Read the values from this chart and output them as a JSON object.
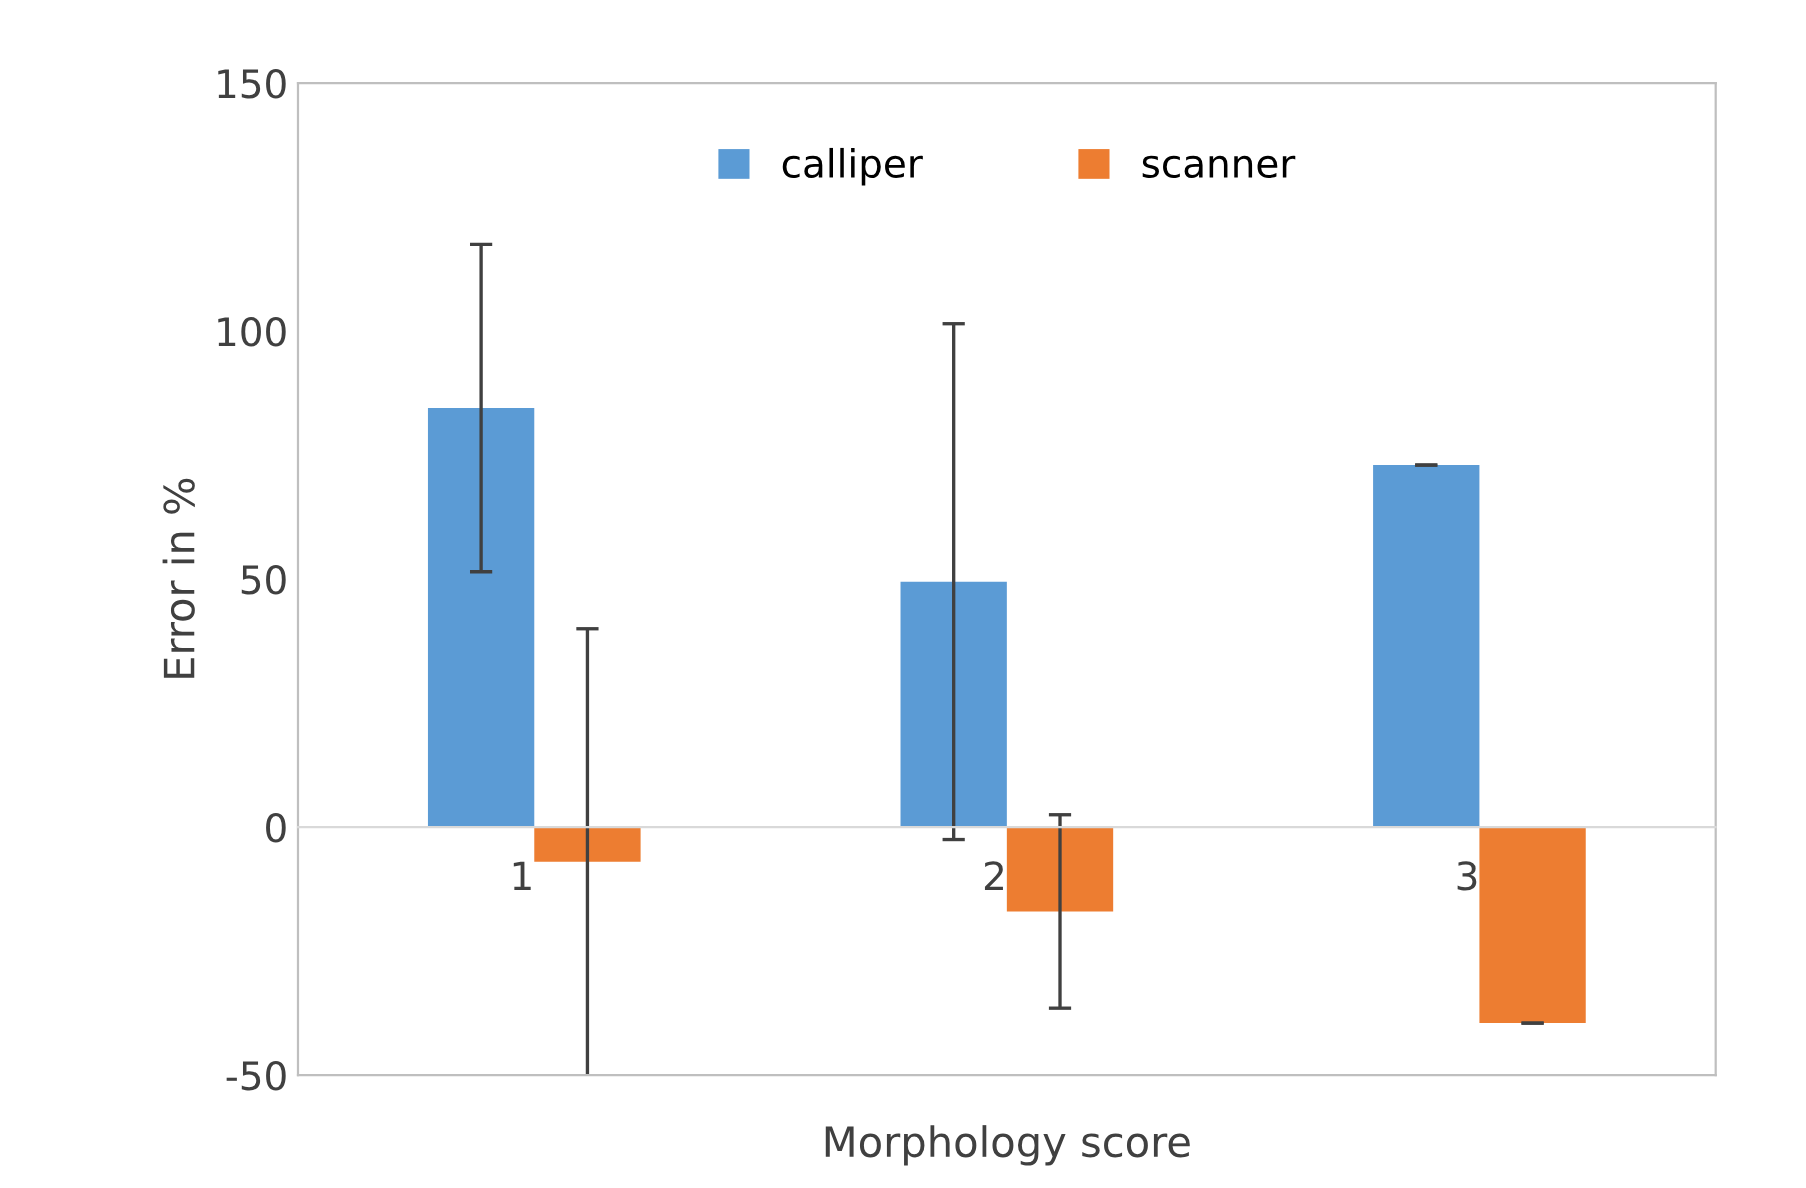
{
  "chart_data": {
    "type": "bar",
    "xlabel": "Morphology score",
    "ylabel": "Error in %",
    "categories": [
      "1",
      "2",
      "3"
    ],
    "series": [
      {
        "name": "calliper",
        "color": "#5b9bd5",
        "values": [
          84.5,
          49.5,
          73
        ],
        "errors": [
          33,
          52,
          0
        ]
      },
      {
        "name": "scanner",
        "color": "#ed7d31",
        "values": [
          -7,
          -17,
          -39.5
        ],
        "errors": [
          47,
          19.5,
          0
        ]
      }
    ],
    "ylim": [
      -50,
      150
    ],
    "yticks": [
      -50,
      0,
      50,
      100,
      150
    ],
    "grid": false,
    "legend": "top"
  }
}
